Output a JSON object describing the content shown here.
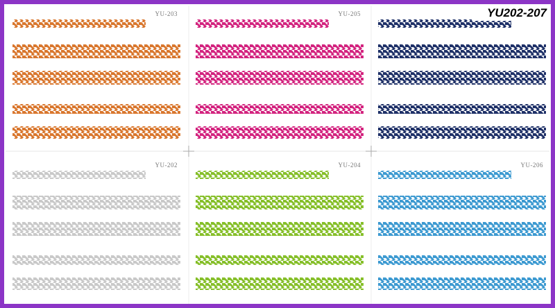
{
  "title": "YU202-207",
  "panels": [
    {
      "label": "YU-203",
      "color": "#d9772e"
    },
    {
      "label": "YU-205",
      "color": "#d3247f"
    },
    {
      "color": "#1f3168"
    },
    {
      "label": "YU-202",
      "color": "#c9c9c9"
    },
    {
      "label": "YU-204",
      "color": "#86bf2a"
    },
    {
      "label": "YU-206",
      "color": "#3d9ad1"
    }
  ]
}
